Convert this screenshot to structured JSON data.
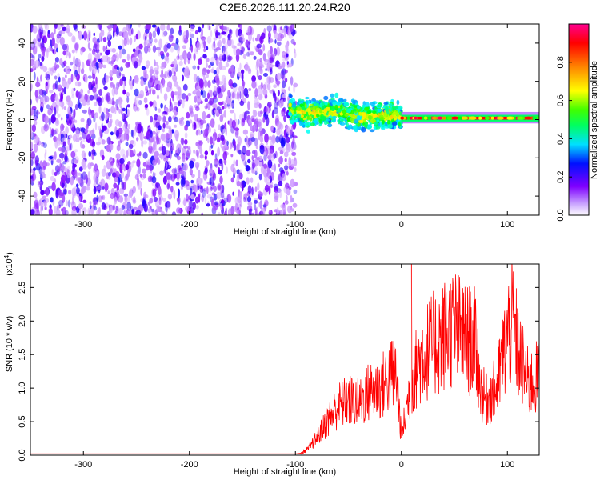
{
  "title": "C2E6.2026.111.20.24.R20",
  "chart_data": [
    {
      "type": "heatmap",
      "xlabel": "Height of straight line (km)",
      "ylabel": "Frequency (Hz)",
      "xlim": [
        -350,
        130
      ],
      "ylim": [
        -50,
        50
      ],
      "xticks": [
        -300,
        -200,
        -100,
        0,
        100
      ],
      "yticks": [
        -40,
        -20,
        0,
        20,
        40
      ],
      "grid": false,
      "description_regions": [
        {
          "x_range": [
            -350,
            -100
          ],
          "freq_range": [
            -50,
            50
          ],
          "amplitude": "low, broadband noise"
        },
        {
          "x_range": [
            -100,
            0
          ],
          "freq_center": [
            5,
            0
          ],
          "amplitude": "mixed, narrowing band near 0 Hz"
        },
        {
          "x_range": [
            0,
            130
          ],
          "freq_center": 0,
          "amplitude": "high, narrow band at ~0-1 Hz"
        }
      ],
      "colorbar": {
        "label": "Normalized spectral amplitude",
        "range": [
          0,
          1
        ],
        "ticks": [
          0.0,
          0.2,
          0.4,
          0.6,
          0.8
        ],
        "colormap": [
          "#ffffff",
          "#7f00ff",
          "#0000ff",
          "#00ffff",
          "#00ff00",
          "#ffff00",
          "#ff8000",
          "#ff0000",
          "#ff00a0"
        ]
      }
    },
    {
      "type": "line",
      "xlabel": "Height of straight line (km)",
      "ylabel": "SNR (10 * v/v)",
      "y_multiplier": "(x10",
      "y_multiplier_exp": "4",
      "y_multiplier_close": ")",
      "xlim": [
        -350,
        130
      ],
      "ylim": [
        0,
        2.85
      ],
      "xticks": [
        -300,
        -200,
        -100,
        0,
        100
      ],
      "yticks": [
        "0.0",
        "0.5",
        "1.0",
        "1.5",
        "2.0",
        "2.5"
      ],
      "grid": false,
      "series": [
        {
          "color": "#ff0000",
          "x": [
            -350,
            -100,
            -95,
            -88,
            -80,
            -70,
            -60,
            -50,
            -40,
            -30,
            -20,
            -10,
            -5,
            0,
            10,
            20,
            30,
            40,
            50,
            60,
            70,
            75,
            80,
            90,
            100,
            105,
            110,
            120,
            130
          ],
          "y": [
            0.02,
            0.02,
            0.03,
            0.1,
            0.28,
            0.55,
            0.8,
            0.9,
            0.85,
            1.05,
            1.1,
            1.3,
            1.35,
            0.3,
            1.25,
            1.65,
            1.8,
            1.95,
            2.1,
            1.9,
            1.85,
            1.05,
            0.9,
            1.1,
            1.95,
            2.2,
            1.7,
            1.15,
            1.3
          ]
        }
      ]
    }
  ]
}
